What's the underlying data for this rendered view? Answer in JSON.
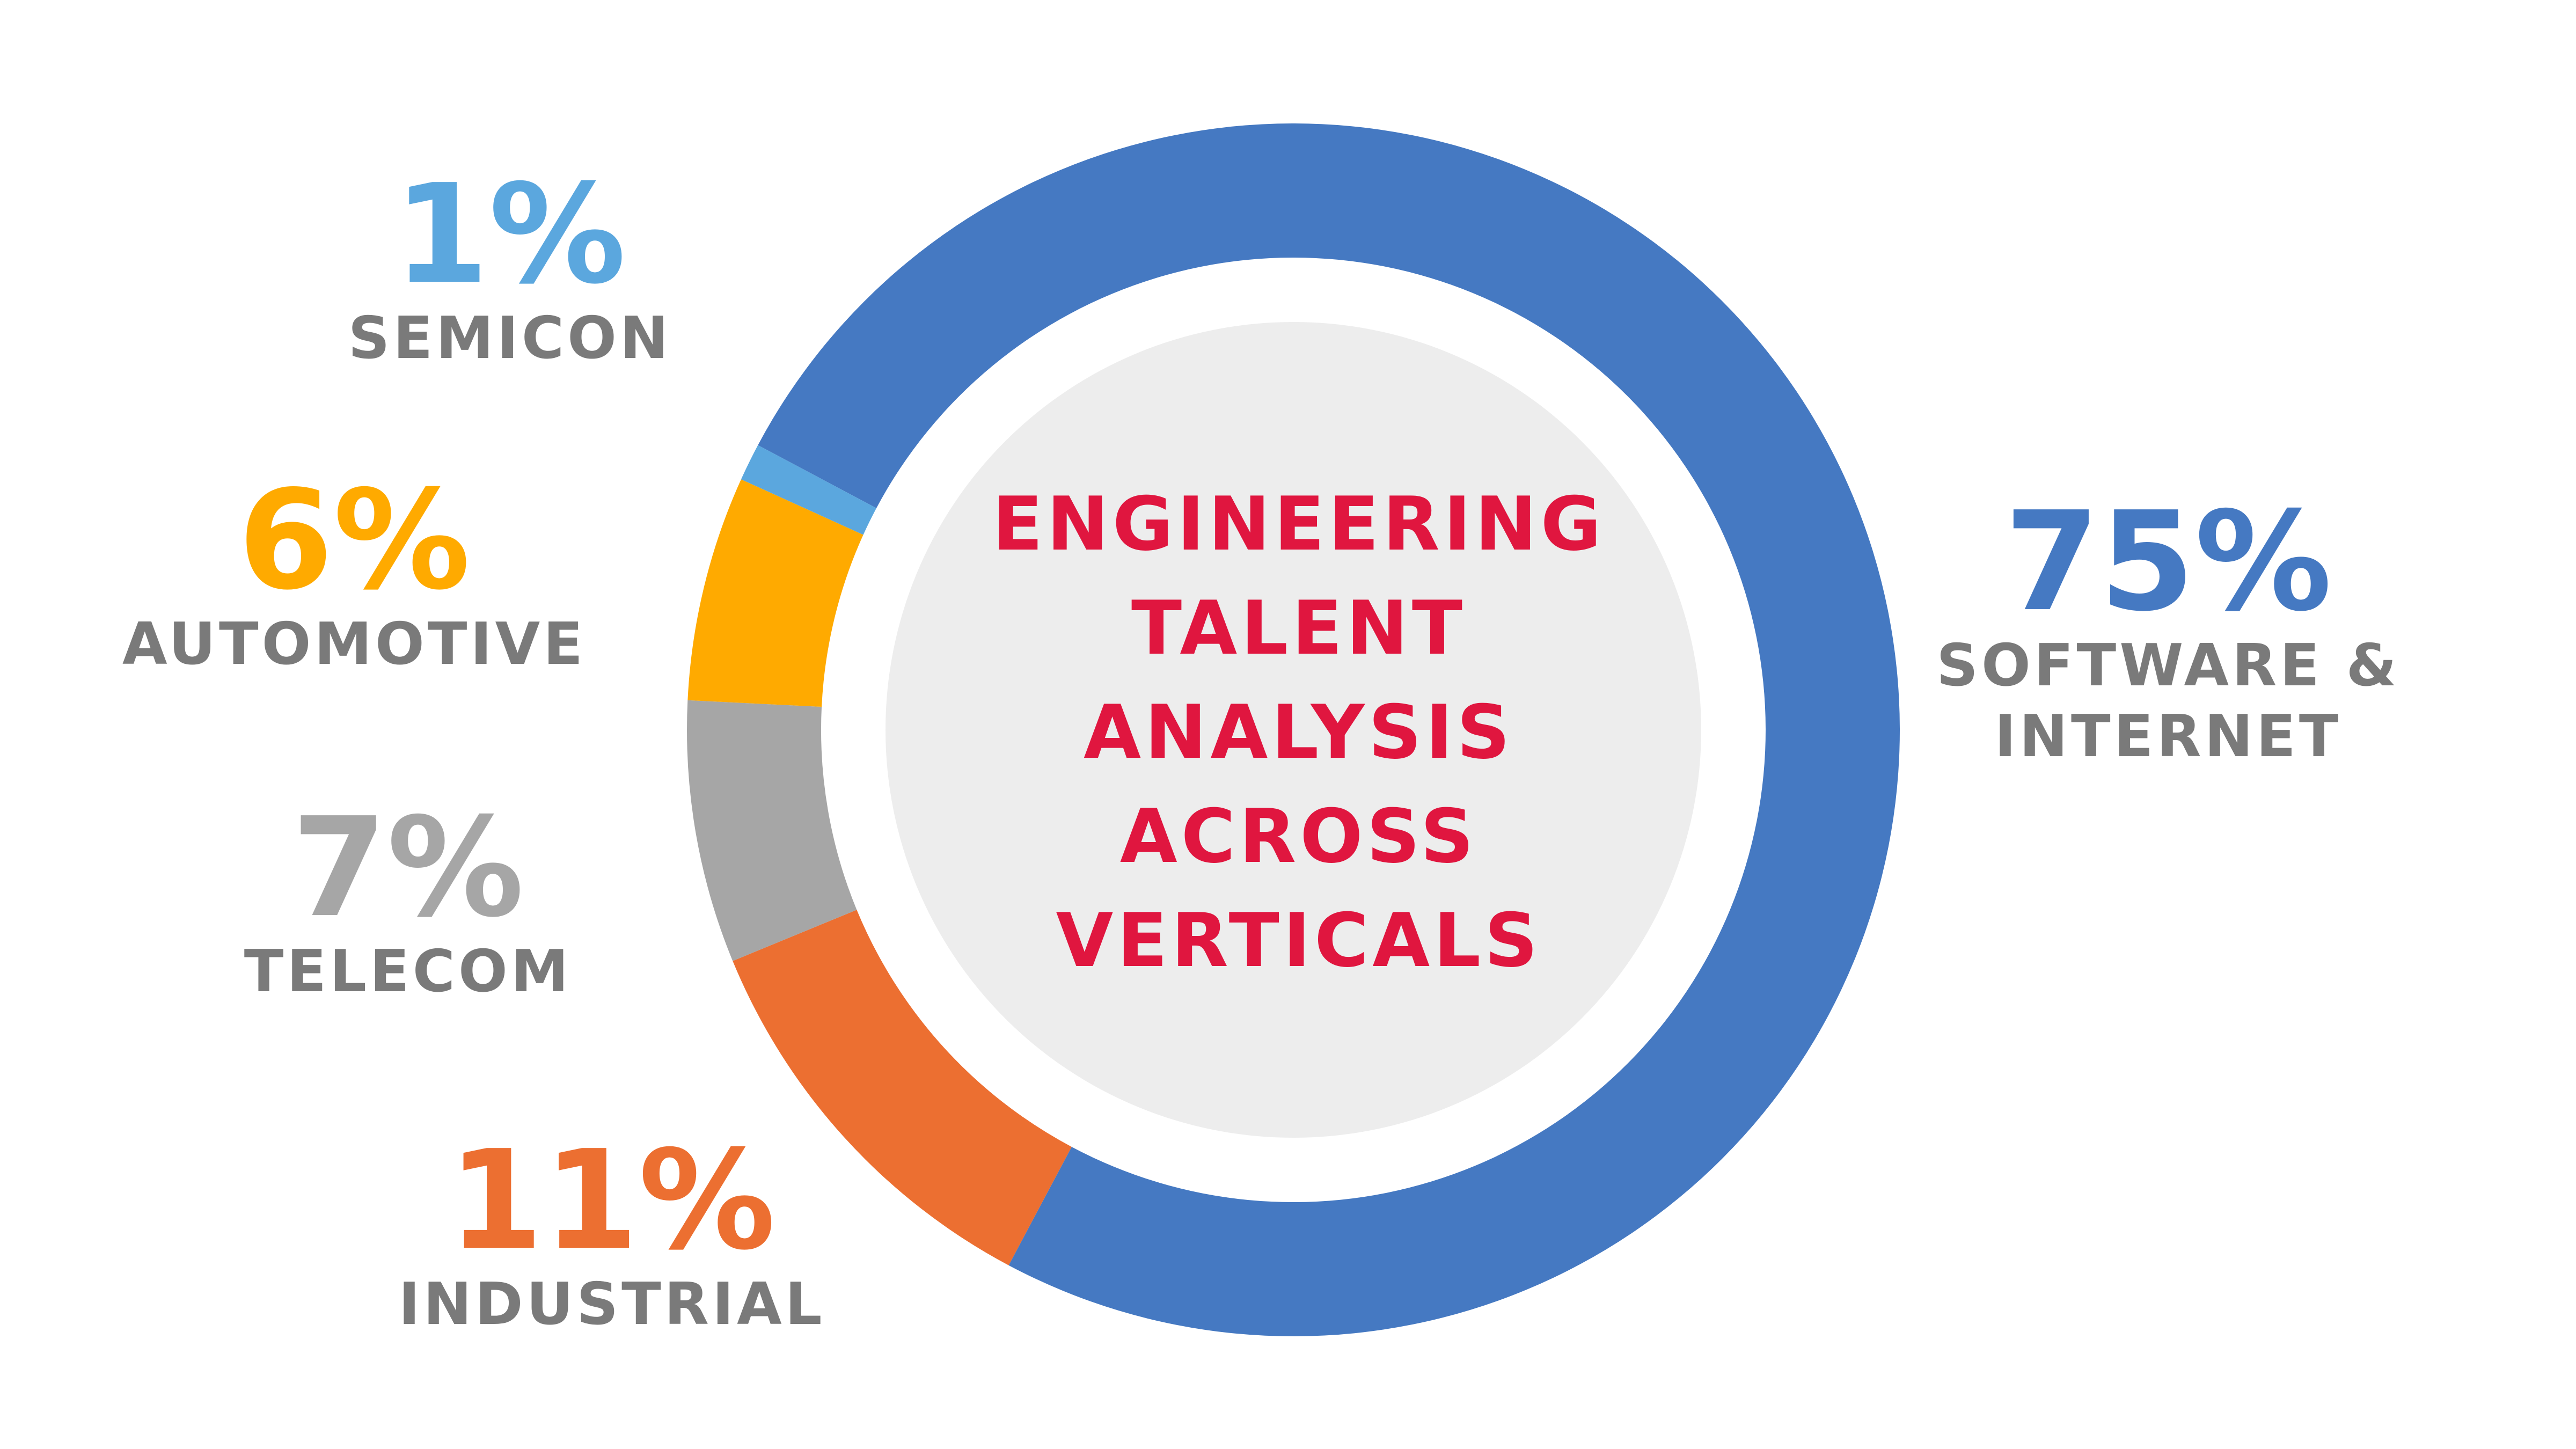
{
  "chart_data": {
    "type": "pie",
    "variant": "donut",
    "title": "ENGINEERING TALENT ANALYSIS ACROSS VERTICALS",
    "title_lines": [
      "ENGINEERING",
      "TALENT",
      "ANALYSIS",
      "ACROSS",
      "VERTICALS"
    ],
    "title_color": "#E0163F",
    "center_fill": "#EDEDED",
    "label_gray": "#7A7A7A",
    "slices": [
      {
        "name": "SOFTWARE & INTERNET",
        "name_lines": [
          "SOFTWARE &",
          "INTERNET"
        ],
        "value": 75,
        "label": "75%",
        "color": "#4579C2"
      },
      {
        "name": "INDUSTRIAL",
        "name_lines": [
          "INDUSTRIAL"
        ],
        "value": 11,
        "label": "11%",
        "color": "#EC6F31"
      },
      {
        "name": "TELECOM",
        "name_lines": [
          "TELECOM"
        ],
        "value": 7,
        "label": "7%",
        "color": "#A6A6A6"
      },
      {
        "name": "AUTOMOTIVE",
        "name_lines": [
          "AUTOMOTIVE"
        ],
        "value": 6,
        "label": "6%",
        "color": "#FFAA00"
      },
      {
        "name": "SEMICON",
        "name_lines": [
          "SEMICON"
        ],
        "value": 1,
        "label": "1%",
        "color": "#5BA7DE"
      }
    ]
  }
}
